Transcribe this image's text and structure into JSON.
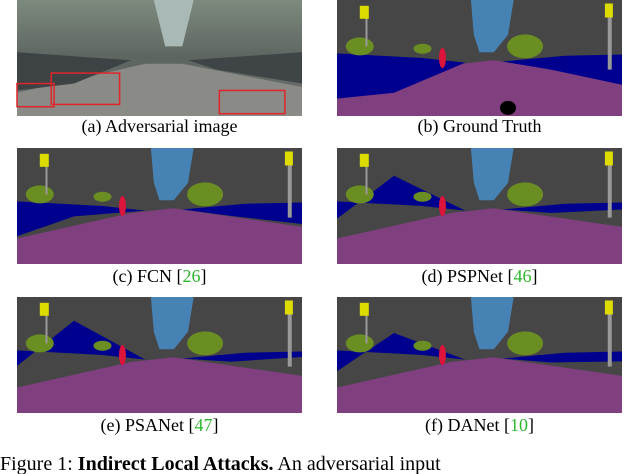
{
  "panels": [
    {
      "label": "(a) Adversarial image"
    },
    {
      "label": "(b) Ground Truth"
    },
    {
      "label": "(c) FCN [",
      "ref": "26",
      "end": "]"
    },
    {
      "label": "(d) PSPNet [",
      "ref": "46",
      "end": "]"
    },
    {
      "label": "(e) PSANet [",
      "ref": "47",
      "end": "]"
    },
    {
      "label": "(f) DANet [",
      "ref": "10",
      "end": "]"
    }
  ],
  "figure_caption": {
    "label": "Figure 1:",
    "title": "Indirect Local Attacks.",
    "text": "An adversarial input"
  }
}
